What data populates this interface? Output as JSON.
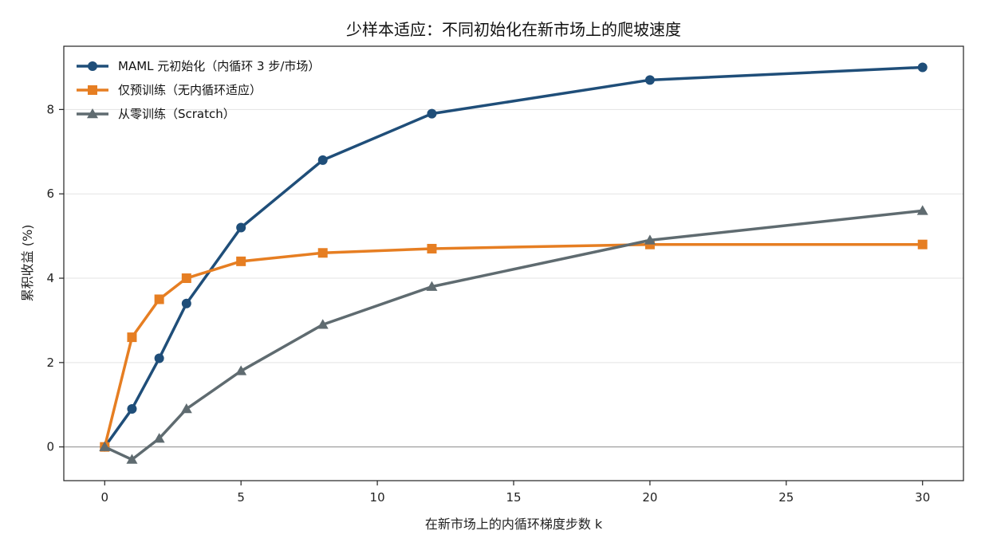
{
  "chart_data": {
    "type": "line",
    "title": "少样本适应：不同初始化在新市场上的爬坡速度",
    "xlabel": "在新市场上的内循环梯度步数 k",
    "ylabel": "累积收益 (%)",
    "xlim": [
      -1.5,
      31.5
    ],
    "ylim": [
      -0.8,
      9.5
    ],
    "xticks": [
      0,
      5,
      10,
      15,
      20,
      25,
      30
    ],
    "yticks": [
      0,
      2,
      4,
      6,
      8
    ],
    "grid": "horizontal",
    "legend_position": "top-left",
    "zero_line": true,
    "series": [
      {
        "name": "MAML 元初始化（内循环 3 步/市场）",
        "color": "#1f4e79",
        "marker": "circle",
        "x": [
          0,
          1,
          2,
          3,
          5,
          8,
          12,
          20,
          30
        ],
        "y": [
          0.0,
          0.9,
          2.1,
          3.4,
          5.2,
          6.8,
          7.9,
          8.7,
          9.0
        ]
      },
      {
        "name": "仅预训练（无内循环适应）",
        "color": "#e67e22",
        "marker": "square",
        "x": [
          0,
          1,
          2,
          3,
          5,
          8,
          12,
          20,
          30
        ],
        "y": [
          0.0,
          2.6,
          3.5,
          4.0,
          4.4,
          4.6,
          4.7,
          4.8,
          4.8
        ]
      },
      {
        "name": "从零训练（Scratch）",
        "color": "#5f6b70",
        "marker": "triangle",
        "x": [
          0,
          1,
          2,
          3,
          5,
          8,
          12,
          20,
          30
        ],
        "y": [
          0.0,
          -0.3,
          0.2,
          0.9,
          1.8,
          2.9,
          3.8,
          4.9,
          5.6
        ]
      }
    ]
  }
}
